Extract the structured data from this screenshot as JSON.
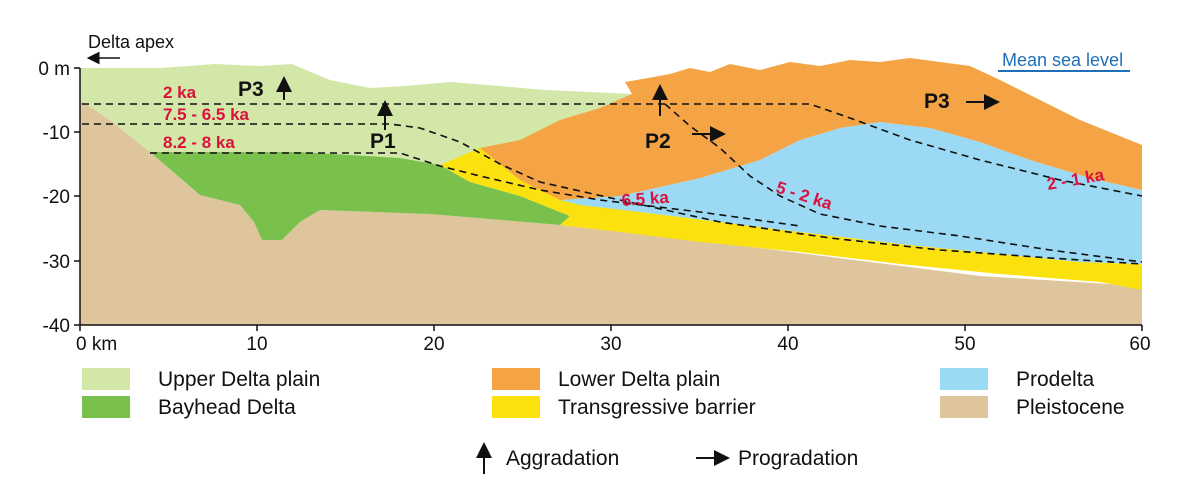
{
  "colors": {
    "upper_delta_plain": "#d3e8a8",
    "bayhead_delta": "#7ac04c",
    "lower_delta_plain": "#f5a445",
    "transgressive_barrier": "#fbe20e",
    "prodelta": "#9bd9f4",
    "pleistocene": "#dfc59b",
    "age_label": "#d8123c",
    "sea_level_label": "#1f6fb8"
  },
  "labels": {
    "delta_apex": "Delta apex",
    "mean_sea_level": "Mean sea level"
  },
  "axes": {
    "y_ticks": [
      "0 m",
      "-10",
      "-20",
      "-30",
      "-40"
    ],
    "x_ticks": [
      "0 km",
      "10",
      "20",
      "30",
      "40",
      "50",
      "60"
    ]
  },
  "ages": [
    {
      "id": "2ka",
      "text": "2 ka"
    },
    {
      "id": "7-5ka",
      "text": "7.5 - 6.5 ka"
    },
    {
      "id": "8-2ka",
      "text": "8.2 - 8 ka"
    },
    {
      "id": "6-5ka",
      "text": "6.5 ka"
    },
    {
      "id": "5-2ka",
      "text": "5 - 2 ka"
    },
    {
      "id": "2-1ka",
      "text": "2 - 1 ka"
    }
  ],
  "phases": [
    {
      "id": "p3-left",
      "text": "P3",
      "icon": "up-arrow-icon"
    },
    {
      "id": "p1",
      "text": "P1",
      "icon": "up-arrow-icon"
    },
    {
      "id": "p2",
      "text": "P2",
      "icon": "right-arrow-icon"
    },
    {
      "id": "p3-right",
      "text": "P3",
      "icon": "right-arrow-icon"
    }
  ],
  "legend": [
    {
      "id": "upper-delta-plain",
      "label": "Upper Delta plain",
      "color": "#d3e8a8"
    },
    {
      "id": "bayhead-delta",
      "label": "Bayhead Delta",
      "color": "#7ac04c"
    },
    {
      "id": "lower-delta-plain",
      "label": "Lower Delta plain",
      "color": "#f5a445"
    },
    {
      "id": "transgressive-barrier",
      "label": "Transgressive barrier",
      "color": "#fbe20e"
    },
    {
      "id": "prodelta",
      "label": "Prodelta",
      "color": "#9bd9f4"
    },
    {
      "id": "pleistocene",
      "label": "Pleistocene",
      "color": "#dfc59b"
    }
  ],
  "arrow_legend": [
    {
      "id": "aggradation",
      "label": "Aggradation",
      "icon": "up-arrow-icon"
    },
    {
      "id": "progradation",
      "label": "Progradation",
      "icon": "right-arrow-icon"
    }
  ]
}
